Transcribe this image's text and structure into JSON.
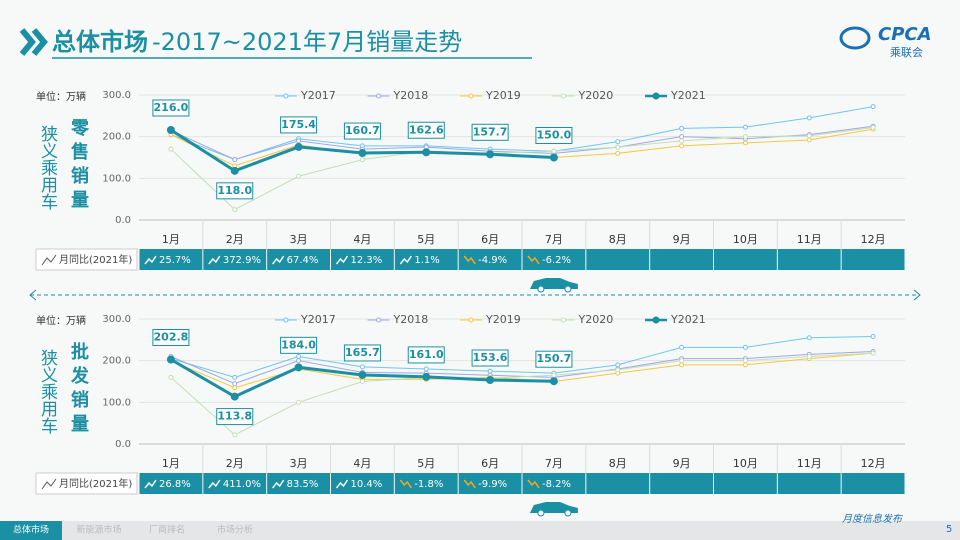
{
  "header": {
    "title_bold": "总体市场",
    "title_rest": "-2017~2021年7月销量走势",
    "logo": "CPCA",
    "logo_sub": "乘联会"
  },
  "chart_data": [
    {
      "type": "line",
      "side_label": "狭义乘用车",
      "title": "零售销量",
      "unit": "单位：万辆",
      "categories": [
        "1月",
        "2月",
        "3月",
        "4月",
        "5月",
        "6月",
        "7月",
        "8月",
        "9月",
        "10月",
        "11月",
        "12月"
      ],
      "ylim": [
        0,
        300
      ],
      "yticks": [
        {
          "value": 0,
          "label": "0.0"
        },
        {
          "value": 100,
          "label": "100.0"
        },
        {
          "value": 200,
          "label": "200.0"
        },
        {
          "value": 300,
          "label": "300.0"
        }
      ],
      "series": [
        {
          "name": "Y2017",
          "color": "#6ec6f0",
          "values": [
            205,
            145,
            195,
            178,
            178,
            170,
            165,
            188,
            220,
            223,
            245,
            272
          ]
        },
        {
          "name": "Y2018",
          "color": "#9fa8e8",
          "values": [
            215,
            145,
            190,
            170,
            175,
            165,
            160,
            175,
            200,
            195,
            205,
            225
          ]
        },
        {
          "name": "Y2019",
          "color": "#f5c842",
          "values": [
            205,
            130,
            180,
            160,
            165,
            160,
            150,
            160,
            178,
            185,
            192,
            218
          ]
        },
        {
          "name": "Y2020",
          "color": "#c5dfb5",
          "values": [
            170,
            25,
            105,
            145,
            165,
            160,
            165,
            175,
            190,
            200,
            202,
            222
          ]
        },
        {
          "name": "Y2021",
          "color": "#1b8fa3",
          "values": [
            216.0,
            118.0,
            175.4,
            160.7,
            162.6,
            157.7,
            150.0,
            null,
            null,
            null,
            null,
            null
          ],
          "value_labels": [
            "216.0",
            "118.0",
            "175.4",
            "160.7",
            "162.6",
            "157.7",
            "150.0",
            null,
            null,
            null,
            null,
            null
          ]
        }
      ],
      "yoy": {
        "label": "月同比(2021年)",
        "values": [
          25.7,
          372.9,
          67.4,
          12.3,
          1.1,
          -4.9,
          -6.2,
          null,
          null,
          null,
          null,
          null
        ],
        "value_labels": [
          "25.7%",
          "372.9%",
          "67.4%",
          "12.3%",
          "1.1%",
          "-4.9%",
          "-6.2%",
          null,
          null,
          null,
          null,
          null
        ]
      }
    },
    {
      "type": "line",
      "side_label": "狭义乘用车",
      "title": "批发销量",
      "unit": "单位：万辆",
      "categories": [
        "1月",
        "2月",
        "3月",
        "4月",
        "5月",
        "6月",
        "7月",
        "8月",
        "9月",
        "10月",
        "11月",
        "12月"
      ],
      "ylim": [
        0,
        300
      ],
      "yticks": [
        {
          "value": 0,
          "label": "0.0"
        },
        {
          "value": 100,
          "label": "100.0"
        },
        {
          "value": 200,
          "label": "200.0"
        },
        {
          "value": 300,
          "label": "300.0"
        }
      ],
      "series": [
        {
          "name": "Y2017",
          "color": "#6ec6f0",
          "values": [
            205,
            160,
            210,
            185,
            180,
            175,
            170,
            190,
            232,
            232,
            255,
            258
          ]
        },
        {
          "name": "Y2018",
          "color": "#9fa8e8",
          "values": [
            210,
            145,
            200,
            172,
            170,
            165,
            160,
            180,
            205,
            205,
            215,
            222
          ]
        },
        {
          "name": "Y2019",
          "color": "#f5c842",
          "values": [
            200,
            135,
            180,
            155,
            155,
            160,
            150,
            170,
            190,
            190,
            205,
            218
          ]
        },
        {
          "name": "Y2020",
          "color": "#c5dfb5",
          "values": [
            160,
            22,
            100,
            150,
            160,
            158,
            165,
            178,
            200,
            200,
            210,
            218
          ]
        },
        {
          "name": "Y2021",
          "color": "#1b8fa3",
          "values": [
            202.8,
            113.8,
            184.0,
            165.7,
            161.0,
            153.6,
            150.7,
            null,
            null,
            null,
            null,
            null
          ],
          "value_labels": [
            "202.8",
            "113.8",
            "184.0",
            "165.7",
            "161.0",
            "153.6",
            "150.7",
            null,
            null,
            null,
            null,
            null
          ]
        }
      ],
      "yoy": {
        "label": "月同比(2021年)",
        "values": [
          26.8,
          411.0,
          83.5,
          10.4,
          -1.8,
          -9.9,
          -8.2,
          null,
          null,
          null,
          null,
          null
        ],
        "value_labels": [
          "26.8%",
          "411.0%",
          "83.5%",
          "10.4%",
          "-1.8%",
          "-9.9%",
          "-8.2%",
          null,
          null,
          null,
          null,
          null
        ]
      }
    }
  ],
  "footer": {
    "tabs": [
      "总体市场",
      "新能源市场",
      "厂商排名",
      "市场分析"
    ],
    "note": "月度信息发布",
    "page": "5"
  }
}
